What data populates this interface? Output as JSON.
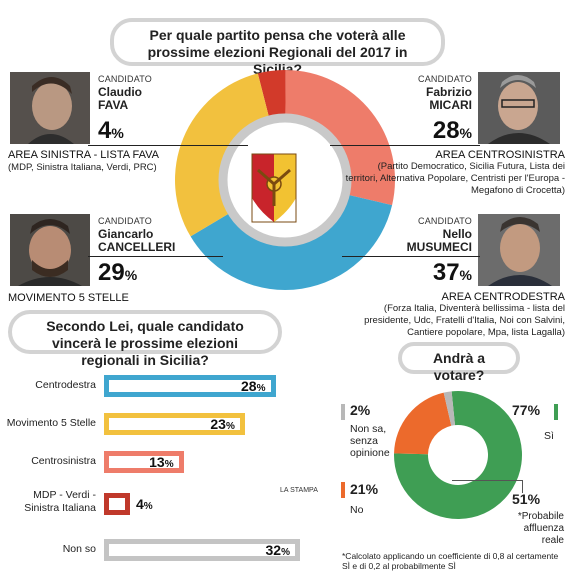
{
  "top_question": "Per quale partito pensa che voterà alle prossime elezioni Regionali del 2017 in Sicilia?",
  "candidates": [
    {
      "label": "CANDIDATO",
      "first": "Claudio",
      "last": "FAVA",
      "pct_num": "4",
      "pct_sign": "%",
      "area": "AREA SINISTRA - LISTA FAVA",
      "area_detail": "(MDP, Sinistra Italiana, Verdi, PRC)",
      "color": "#d23a2a"
    },
    {
      "label": "CANDIDATO",
      "first": "Fabrizio",
      "last": "MICARI",
      "pct_num": "28",
      "pct_sign": "%",
      "area": "AREA CENTROSINISTRA",
      "area_detail": "(Partito Democratico, Sicilia Futura, Lista dei territori, Alternativa Popolare, Centristi per l'Europa -Megafono di Crocetta)",
      "color": "#ee7c6a"
    },
    {
      "label": "CANDIDATO",
      "first": "Giancarlo",
      "last": "CANCELLERI",
      "pct_num": "29",
      "pct_sign": "%",
      "area": "MOVIMENTO 5 STELLE",
      "area_detail": "",
      "color": "#f2c13e"
    },
    {
      "label": "CANDIDATO",
      "first": "Nello",
      "last": "MUSUMECI",
      "pct_num": "37",
      "pct_sign": "%",
      "area": "AREA CENTRODESTRA",
      "area_detail": "(Forza Italia, Diventerà bellissima - lista del presidente, Udc, Fratelli d'Italia, Noi con Salvini, Cantiere popolare, Mpa, lista Lagalla)",
      "color": "#3fa6cf"
    }
  ],
  "second_question": "Secondo Lei, quale candidato vincerà le prossime elezioni regionali in Sicilia?",
  "third_question": "Andrà a votare?",
  "source_label": "LA STAMPA",
  "turnout": {
    "si_pct": "77%",
    "si_label": "Sì",
    "no_pct": "21%",
    "no_label": "No",
    "nonsa_pct": "2%",
    "nonsa_label": "Non sa, senza opinione",
    "prob_pct": "51%",
    "prob_label": "*Probabile affluenza reale",
    "footnote": "*Calcolato applicando un coefficiente di 0,8 al certamente SÌ e di 0,2 al probabilmente SÌ",
    "colors": {
      "si": "#3f9e54",
      "no": "#ec6a2c",
      "nonsa": "#b8b8b8"
    }
  },
  "chart_data": [
    {
      "type": "pie",
      "title": "Per quale partito pensa che voterà alle prossime elezioni Regionali del 2017 in Sicilia?",
      "categories": [
        "Claudio FAVA",
        "Fabrizio MICARI",
        "Nello MUSUMECI",
        "Giancarlo CANCELLERI"
      ],
      "values": [
        4,
        28,
        37,
        29
      ],
      "colors": [
        "#d23a2a",
        "#ee7c6a",
        "#3fa6cf",
        "#f2c13e"
      ]
    },
    {
      "type": "bar",
      "title": "Secondo Lei, quale candidato vincerà le prossime elezioni regionali in Sicilia?",
      "categories": [
        "Centrodestra",
        "Movimento 5 Stelle",
        "Centrosinistra",
        "MDP - Verdi - Sinistra Italiana",
        "Non so"
      ],
      "values": [
        28,
        23,
        13,
        4,
        32
      ],
      "colors": [
        "#3fa6cf",
        "#f2c13e",
        "#ee7c6a",
        "#c0392b",
        "#c4c4c4"
      ],
      "value_labels": [
        {
          "num": "28",
          "sign": "%"
        },
        {
          "num": "23",
          "sign": "%"
        },
        {
          "num": "13",
          "sign": "%"
        },
        {
          "num": "4",
          "sign": "%"
        },
        {
          "num": "32",
          "sign": "%"
        }
      ],
      "xlim": [
        0,
        32
      ]
    },
    {
      "type": "pie",
      "title": "Andrà a votare?",
      "categories": [
        "Sì",
        "No",
        "Non sa, senza opinione"
      ],
      "values": [
        77,
        21,
        2
      ],
      "colors": [
        "#3f9e54",
        "#ec6a2c",
        "#b8b8b8"
      ]
    }
  ]
}
